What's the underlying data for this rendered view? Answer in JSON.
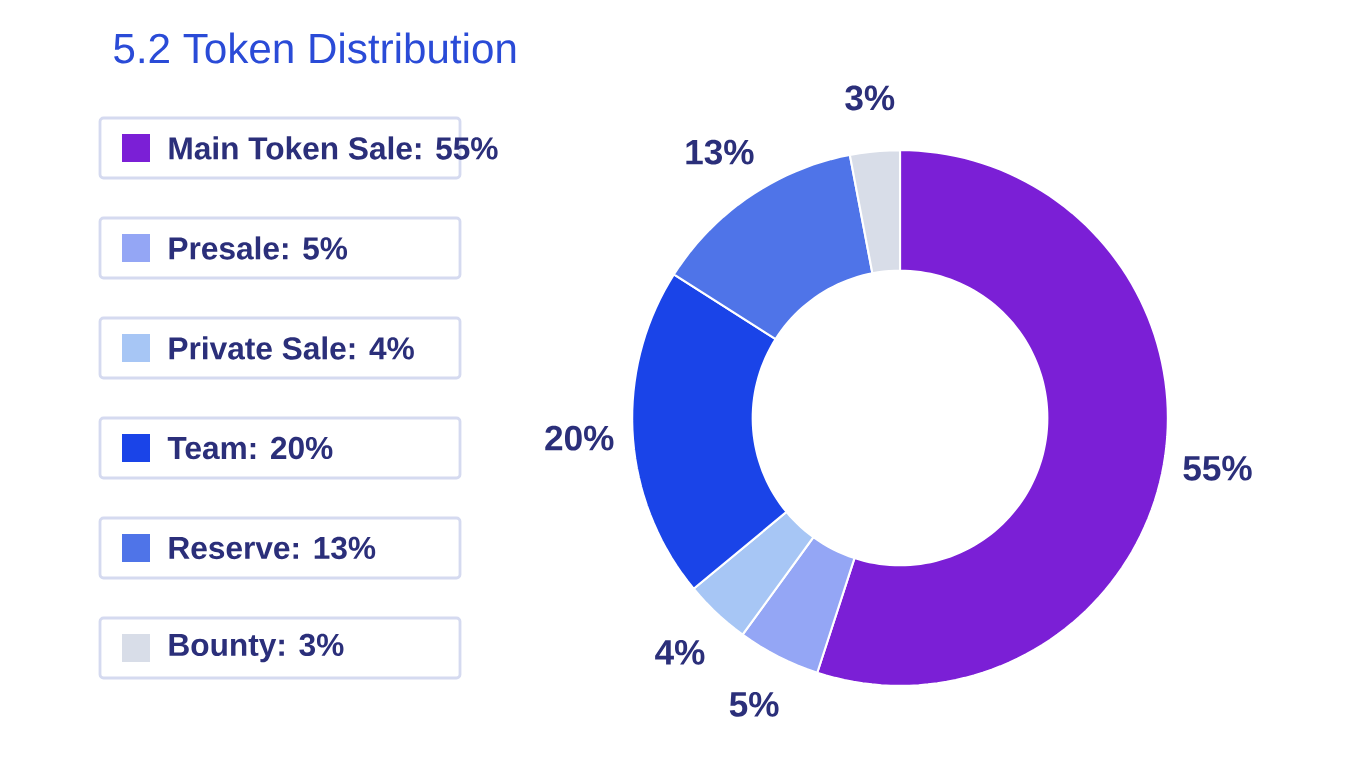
{
  "chart_data": {
    "type": "donut",
    "title": "5.2 Token Distribution",
    "categories": [
      "Main Token Sale: 55%",
      "Presale: 5%",
      "Private Sale: 4%",
      "Team: 20%",
      "Reserve: 13%",
      "Bounty: 3%"
    ],
    "values": [
      55,
      5,
      4,
      20,
      13,
      3
    ],
    "colors": [
      "#7b1fd6",
      "#94a6f5",
      "#a7c6f5",
      "#1a44e8",
      "#4f74e8",
      "#d8dde8"
    ],
    "value_labels": [
      "55%",
      "5%",
      "4%",
      "20%",
      "13%",
      "3%"
    ],
    "legend": "left"
  }
}
